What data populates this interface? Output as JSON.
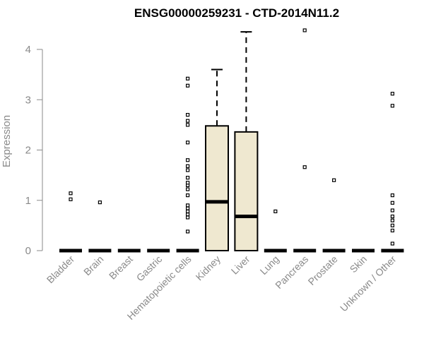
{
  "chart_data": {
    "type": "box",
    "title": "ENSG00000259231 - CTD-2014N11.2",
    "xlabel": "",
    "ylabel": "Expression",
    "ylim": [
      0,
      4.3
    ],
    "yticks": [
      0,
      1,
      2,
      3,
      4
    ],
    "grid": false,
    "box_fill": "#efe8d0",
    "categories": [
      "Bladder",
      "Brain",
      "Breast",
      "Gastric",
      "Hematopoietic cells",
      "Kidney",
      "Liver",
      "Lung",
      "Pancreas",
      "Prostate",
      "Skin",
      "Unknown / Other"
    ],
    "boxes": [
      {
        "min": 0,
        "q1": 0,
        "median": 0,
        "q3": 0,
        "max": 0,
        "outliers": [
          1.02,
          1.14
        ]
      },
      {
        "min": 0,
        "q1": 0,
        "median": 0,
        "q3": 0,
        "max": 0,
        "outliers": [
          0.96
        ]
      },
      {
        "min": 0,
        "q1": 0,
        "median": 0,
        "q3": 0,
        "max": 0,
        "outliers": []
      },
      {
        "min": 0,
        "q1": 0,
        "median": 0,
        "q3": 0,
        "max": 0,
        "outliers": []
      },
      {
        "min": 0,
        "q1": 0,
        "median": 0,
        "q3": 0,
        "max": 0,
        "outliers": [
          0.38,
          0.66,
          0.72,
          0.78,
          0.84,
          0.9,
          1.1,
          1.22,
          1.3,
          1.35,
          1.45,
          1.6,
          1.68,
          1.8,
          2.15,
          2.5,
          2.58,
          2.7,
          3.28,
          3.42
        ]
      },
      {
        "min": 0,
        "q1": 0,
        "median": 0.97,
        "q3": 2.48,
        "max": 3.6,
        "outliers": []
      },
      {
        "min": 0,
        "q1": 0,
        "median": 0.68,
        "q3": 2.36,
        "max": 4.35,
        "outliers": []
      },
      {
        "min": 0,
        "q1": 0,
        "median": 0,
        "q3": 0,
        "max": 0,
        "outliers": [
          0.78
        ]
      },
      {
        "min": 0,
        "q1": 0,
        "median": 0,
        "q3": 0,
        "max": 0,
        "outliers": [
          1.66,
          4.38
        ]
      },
      {
        "min": 0,
        "q1": 0,
        "median": 0,
        "q3": 0,
        "max": 0,
        "outliers": [
          1.4
        ]
      },
      {
        "min": 0,
        "q1": 0,
        "median": 0,
        "q3": 0,
        "max": 0,
        "outliers": []
      },
      {
        "min": 0,
        "q1": 0,
        "median": 0,
        "q3": 0,
        "max": 0,
        "outliers": [
          0.14,
          0.4,
          0.5,
          0.6,
          0.68,
          0.8,
          0.95,
          1.1,
          2.88,
          3.12
        ]
      }
    ]
  }
}
